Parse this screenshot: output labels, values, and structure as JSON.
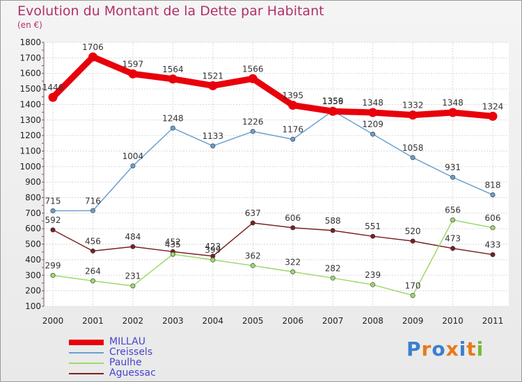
{
  "title": "Evolution du Montant de la Dette par Habitant",
  "subtitle": "(en €)",
  "logo": {
    "text": "Proxiti",
    "colors": [
      "#3a7fd0",
      "#e67a1c",
      "#3a7fd0",
      "#e67a1c",
      "#3a7fd0",
      "#e67a1c",
      "#79b83a"
    ]
  },
  "chart_data": {
    "type": "line",
    "x": [
      "2000",
      "2001",
      "2002",
      "2003",
      "2004",
      "2005",
      "2006",
      "2007",
      "2008",
      "2009",
      "2010",
      "2011"
    ],
    "y_ticks": [
      100,
      200,
      300,
      400,
      500,
      600,
      700,
      800,
      900,
      1000,
      1100,
      1200,
      1300,
      1400,
      1500,
      1600,
      1700,
      1800
    ],
    "ylim": [
      100,
      1800
    ],
    "grid": true,
    "legend_position": "bottom-left",
    "series": [
      {
        "name": "MILLAU",
        "color": "#e8000b",
        "values": [
          1446,
          1706,
          1597,
          1564,
          1521,
          1566,
          1395,
          1356,
          1348,
          1332,
          1348,
          1324
        ],
        "labels": [
          "1446",
          "1706",
          "1597",
          "1564",
          "1521",
          "1566",
          "1395",
          "1356",
          "1348",
          "1332",
          "1348",
          "1324"
        ]
      },
      {
        "name": "Creissels",
        "color": "#6a9fcf",
        "values": [
          715,
          716,
          1004,
          1248,
          1133,
          1226,
          1176,
          1359,
          1209,
          1058,
          931,
          818
        ],
        "labels": [
          "715",
          "716",
          "1004",
          "1248",
          "1133",
          "1226",
          "1176",
          "1359",
          "1209",
          "1058",
          "931",
          "818"
        ]
      },
      {
        "name": "Paulhe",
        "color": "#9ed86a",
        "values": [
          299,
          264,
          231,
          435,
          399,
          362,
          322,
          282,
          239,
          170,
          656,
          606
        ],
        "labels": [
          "299",
          "264",
          "231",
          "435",
          "399",
          "362",
          "322",
          "282",
          "239",
          "170",
          "656",
          "606"
        ]
      },
      {
        "name": "Aguessac",
        "color": "#7a2020",
        "values": [
          592,
          456,
          484,
          452,
          423,
          637,
          606,
          588,
          551,
          520,
          473,
          433
        ],
        "labels": [
          "592",
          "456",
          "484",
          "452",
          "423",
          "637",
          "606",
          "588",
          "551",
          "520",
          "473",
          "433"
        ]
      }
    ]
  }
}
